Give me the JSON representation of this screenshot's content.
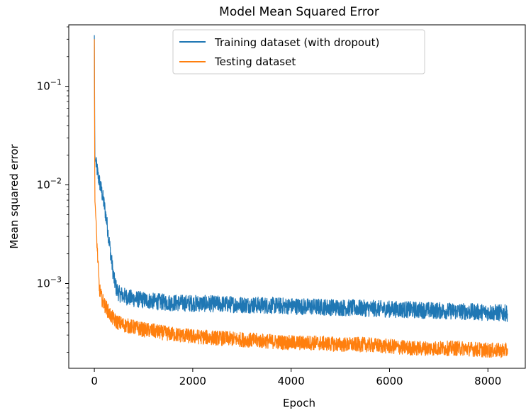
{
  "chart_data": {
    "type": "line",
    "title": "Model Mean Squared Error",
    "xlabel": "Epoch",
    "ylabel": "Mean squared error",
    "xlim": [
      -520,
      8760
    ],
    "ylim": [
      0.000138,
      0.42
    ],
    "yscale": "log",
    "grid": false,
    "legend_position": "top-center",
    "x_ticks": [
      0,
      2000,
      4000,
      6000,
      8000
    ],
    "x_tick_labels": [
      "0",
      "2000",
      "4000",
      "6000",
      "8000"
    ],
    "y_ticks": [
      0.001,
      0.01,
      0.1
    ],
    "y_tick_labels": [
      {
        "base": "10",
        "exp": "−3"
      },
      {
        "base": "10",
        "exp": "−2"
      },
      {
        "base": "10",
        "exp": "−1"
      }
    ],
    "series": [
      {
        "name": "Training dataset (with dropout)",
        "color": "#1f77b4",
        "x": [
          0,
          10,
          20,
          40,
          60,
          80,
          100,
          150,
          200,
          250,
          300,
          350,
          400,
          450,
          500,
          600,
          700,
          800,
          1000,
          1200,
          1500,
          2000,
          2500,
          3000,
          3500,
          4000,
          4500,
          5000,
          5500,
          6000,
          6500,
          7000,
          7500,
          8000,
          8400
        ],
        "y": [
          0.33,
          0.02,
          0.018,
          0.016,
          0.014,
          0.012,
          0.011,
          0.0085,
          0.0063,
          0.0043,
          0.0027,
          0.0017,
          0.0011,
          0.00088,
          0.00079,
          0.00075,
          0.00072,
          0.0007,
          0.00068,
          0.00066,
          0.00064,
          0.00063,
          0.00062,
          0.00061,
          0.0006,
          0.00059,
          0.00058,
          0.00057,
          0.00056,
          0.00055,
          0.00054,
          0.00053,
          0.00052,
          0.00051,
          0.0005
        ]
      },
      {
        "name": "Testing dataset",
        "color": "#ff7f0e",
        "x": [
          0,
          10,
          20,
          40,
          60,
          80,
          100,
          150,
          200,
          250,
          300,
          350,
          400,
          450,
          500,
          600,
          700,
          800,
          1000,
          1200,
          1500,
          2000,
          2500,
          3000,
          3500,
          4000,
          4500,
          5000,
          5500,
          6000,
          6500,
          7000,
          7500,
          8000,
          8400
        ],
        "y": [
          0.3,
          0.007,
          0.006,
          0.0035,
          0.0022,
          0.0014,
          0.0009,
          0.0007,
          0.00062,
          0.00056,
          0.0005,
          0.00046,
          0.00043,
          0.00041,
          0.0004,
          0.00038,
          0.00037,
          0.00036,
          0.00034,
          0.00033,
          0.00031,
          0.00029,
          0.00028,
          0.00027,
          0.00026,
          0.00025,
          0.00025,
          0.00024,
          0.00024,
          0.00023,
          0.00022,
          0.00022,
          0.00022,
          0.00021,
          0.00021
        ]
      }
    ]
  }
}
